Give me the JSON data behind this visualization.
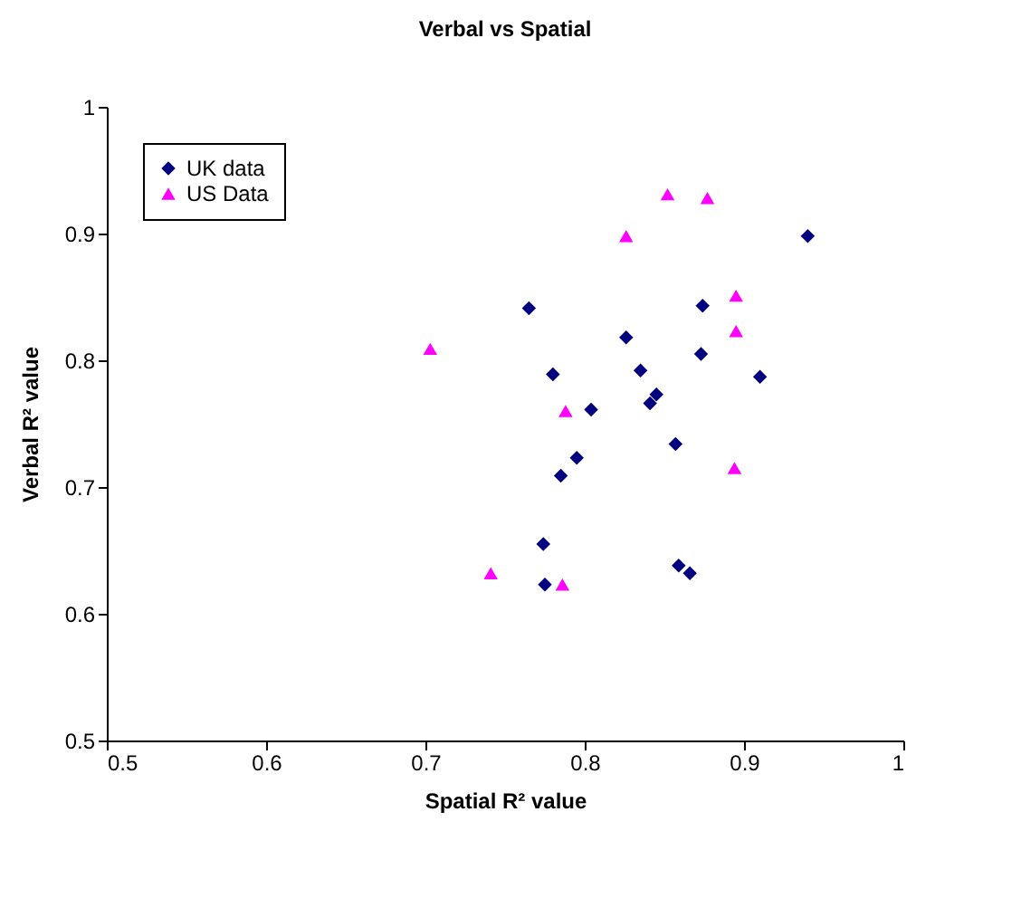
{
  "chart_data": {
    "type": "scatter",
    "title": "Verbal vs Spatial",
    "xlabel": "Spatial R² value",
    "ylabel": "Verbal R² value",
    "xlim": [
      0.5,
      1
    ],
    "xticks": [
      0.5,
      0.6,
      0.7,
      0.8,
      0.9,
      1
    ],
    "ylim": [
      0.5,
      1
    ],
    "yticks": [
      0.5,
      0.6,
      0.7,
      0.8,
      0.9,
      1
    ],
    "grid": false,
    "legend": "top left",
    "series": [
      {
        "name": "UK data",
        "color": "#000080",
        "marker": "diamond",
        "x": [
          0.765,
          0.94,
          0.874,
          0.826,
          0.78,
          0.835,
          0.873,
          0.91,
          0.804,
          0.845,
          0.841,
          0.857,
          0.795,
          0.785,
          0.774,
          0.775,
          0.859,
          0.866
        ],
        "values": [
          0.841,
          0.898,
          0.843,
          0.818,
          0.789,
          0.792,
          0.805,
          0.787,
          0.761,
          0.773,
          0.766,
          0.734,
          0.723,
          0.709,
          0.655,
          0.623,
          0.638,
          0.632
        ]
      },
      {
        "name": "US Data",
        "color": "#ff00ff",
        "marker": "triangle",
        "x": [
          0.852,
          0.877,
          0.826,
          0.895,
          0.895,
          0.703,
          0.788,
          0.894,
          0.741,
          0.786
        ],
        "values": [
          0.931,
          0.928,
          0.898,
          0.851,
          0.823,
          0.809,
          0.76,
          0.715,
          0.632,
          0.623
        ]
      }
    ]
  }
}
